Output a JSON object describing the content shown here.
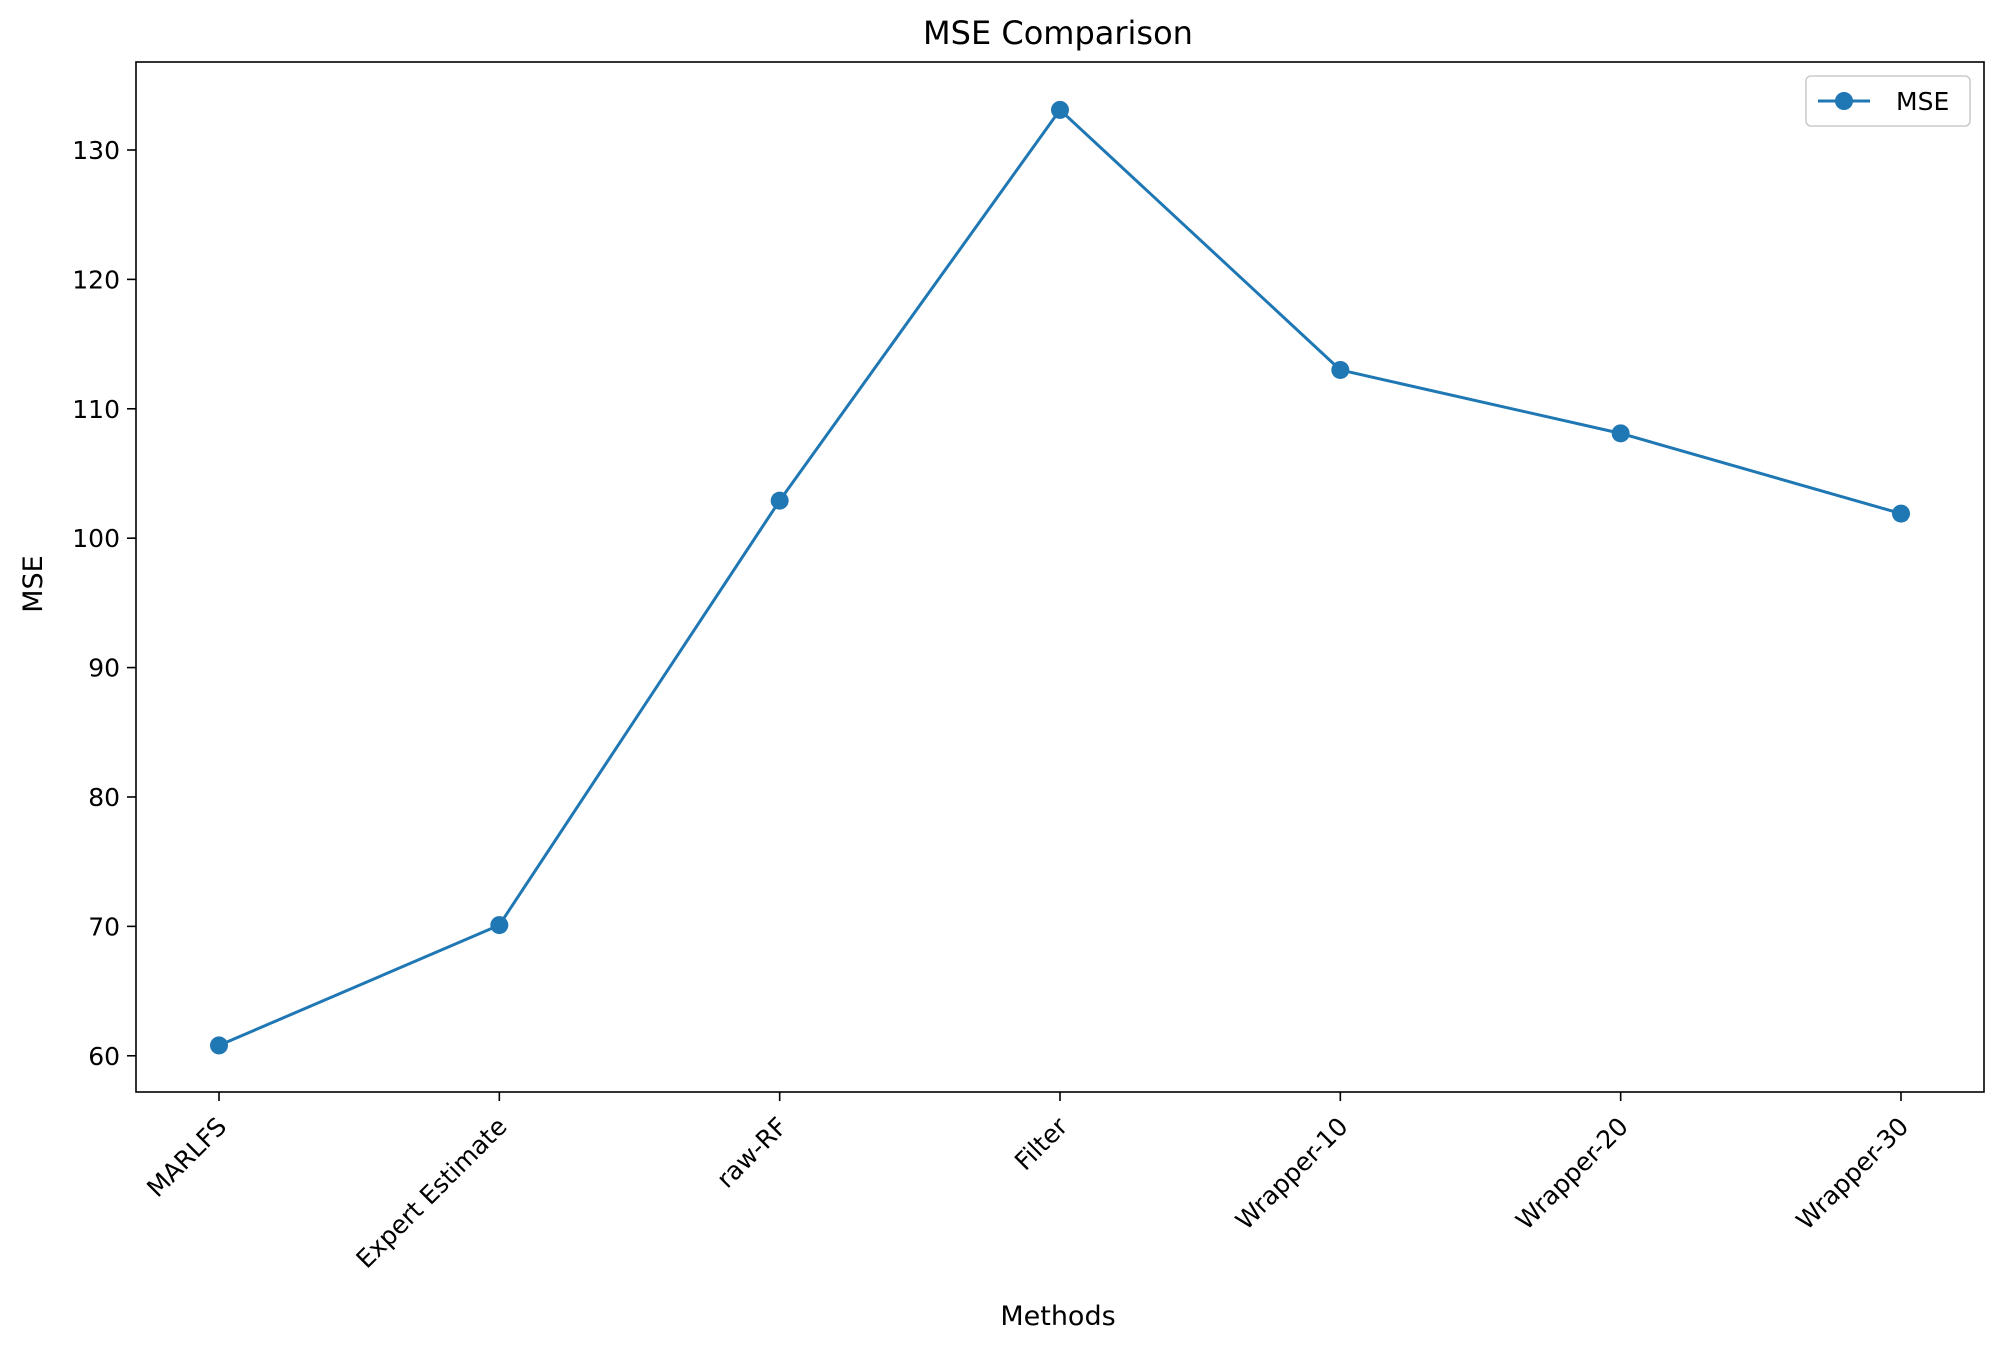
{
  "chart_data": {
    "type": "line",
    "title": "MSE Comparison",
    "xlabel": "Methods",
    "ylabel": "MSE",
    "categories": [
      "MARLFS",
      "Expert Estimate",
      "raw-RF",
      "Filter",
      "Wrapper-10",
      "Wrapper-20",
      "Wrapper-30"
    ],
    "series": [
      {
        "name": "MSE",
        "values": [
          60.8,
          70.1,
          102.9,
          133.1,
          113.0,
          108.1,
          101.9
        ],
        "color": "#1f77b4",
        "marker": "circle"
      }
    ],
    "ylim": [
      57.2,
      136.8
    ],
    "yticks": [
      60,
      70,
      80,
      90,
      100,
      110,
      120,
      130
    ],
    "xtick_rotation": 45,
    "legend": {
      "position": "top-right"
    },
    "grid": false
  }
}
